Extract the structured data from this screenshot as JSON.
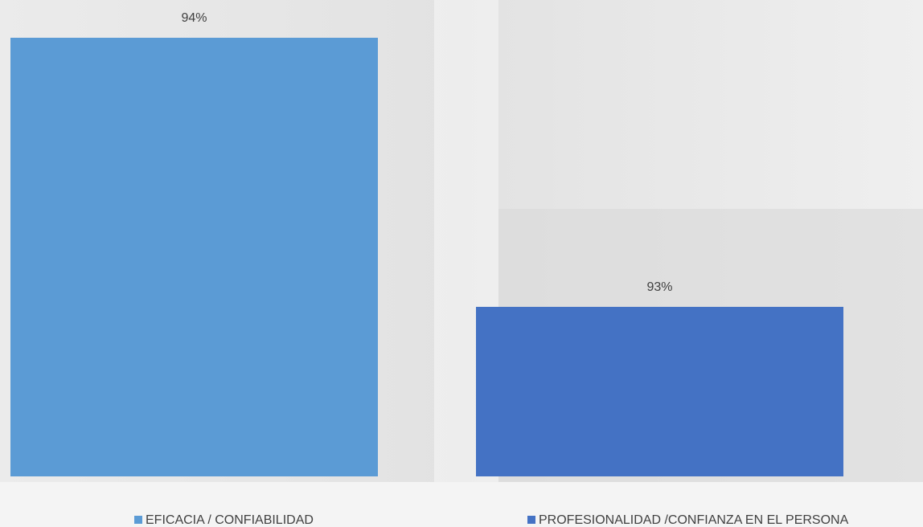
{
  "chart_data": {
    "type": "bar",
    "categories": [
      null
    ],
    "series": [
      {
        "name": "EFICACIA / CONFIABILIDAD",
        "color": "#5b9bd5",
        "values": [
          94
        ],
        "value_labels": [
          "94%"
        ]
      },
      {
        "name": "PROFESIONALIDAD /CONFIANZA EN EL PERSONA",
        "color": "#4472c4",
        "values": [
          93
        ],
        "value_labels": [
          "93%"
        ]
      }
    ],
    "ylim": [
      92.37,
      94
    ],
    "legend": "bottom"
  }
}
